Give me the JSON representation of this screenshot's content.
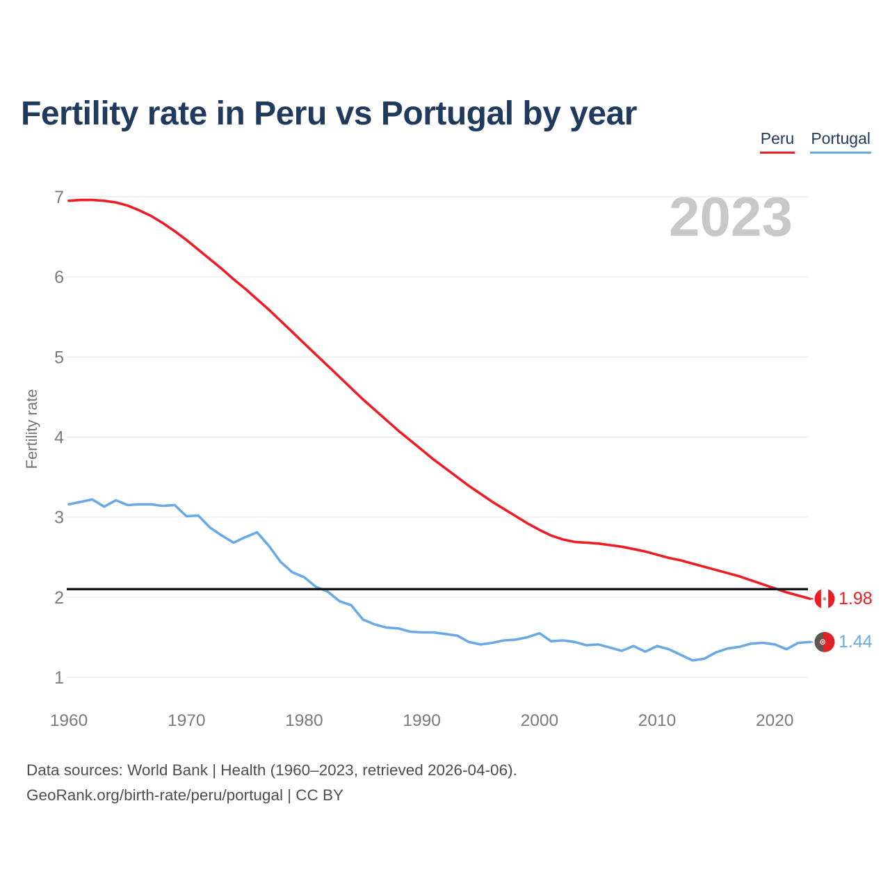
{
  "title": "Fertility rate in Peru vs Portugal by year",
  "watermark_year": "2023",
  "legend": {
    "items": [
      {
        "label": "Peru",
        "color": "#ee1c25"
      },
      {
        "label": "Portugal",
        "color": "#6aa9e4"
      }
    ]
  },
  "y_axis": {
    "title": "Fertility rate",
    "ticks": [
      7,
      6,
      5,
      4,
      3,
      2,
      1
    ]
  },
  "x_axis": {
    "ticks": [
      1960,
      1970,
      1980,
      1990,
      2000,
      2010,
      2020
    ]
  },
  "end_labels": {
    "peru": "1.98",
    "portugal": "1.44"
  },
  "footer": {
    "line1": "Data sources: World Bank | Health (1960–2023, retrieved 2026-04-06).",
    "line2": "GeoRank.org/birth-rate/peru/portugal | CC BY"
  },
  "chart_data": {
    "type": "line",
    "title": "Fertility rate in Peru vs Portugal by year",
    "xlabel": "",
    "ylabel": "Fertility rate",
    "x_start": 1960,
    "x_end": 2023,
    "ylim": [
      1,
      7
    ],
    "yticks": [
      1,
      2,
      3,
      4,
      5,
      6,
      7
    ],
    "xticks": [
      1960,
      1970,
      1980,
      1990,
      2000,
      2010,
      2020
    ],
    "grid": "horizontal",
    "legend_position": "top-right",
    "reference_line": {
      "value": 2.1,
      "color": "#13131b"
    },
    "series": [
      {
        "name": "Peru",
        "color": "#ee1c25",
        "end_value": 1.98,
        "values": [
          6.95,
          6.96,
          6.96,
          6.95,
          6.93,
          6.89,
          6.83,
          6.76,
          6.67,
          6.57,
          6.46,
          6.34,
          6.22,
          6.1,
          5.97,
          5.85,
          5.72,
          5.59,
          5.45,
          5.31,
          5.17,
          5.03,
          4.89,
          4.75,
          4.61,
          4.47,
          4.34,
          4.21,
          4.08,
          3.96,
          3.84,
          3.72,
          3.61,
          3.5,
          3.39,
          3.29,
          3.19,
          3.1,
          3.01,
          2.92,
          2.84,
          2.77,
          2.72,
          2.69,
          2.68,
          2.67,
          2.65,
          2.63,
          2.6,
          2.57,
          2.53,
          2.49,
          2.46,
          2.42,
          2.38,
          2.34,
          2.3,
          2.26,
          2.21,
          2.16,
          2.11,
          2.06,
          2.02,
          1.98
        ]
      },
      {
        "name": "Portugal",
        "color": "#6aa9e4",
        "end_value": 1.44,
        "values": [
          3.16,
          3.19,
          3.22,
          3.13,
          3.21,
          3.15,
          3.16,
          3.16,
          3.14,
          3.15,
          3.01,
          3.02,
          2.87,
          2.77,
          2.68,
          2.75,
          2.81,
          2.64,
          2.44,
          2.31,
          2.25,
          2.13,
          2.07,
          1.95,
          1.9,
          1.72,
          1.66,
          1.62,
          1.61,
          1.57,
          1.56,
          1.56,
          1.54,
          1.52,
          1.44,
          1.41,
          1.43,
          1.46,
          1.47,
          1.5,
          1.55,
          1.45,
          1.46,
          1.44,
          1.4,
          1.41,
          1.37,
          1.33,
          1.39,
          1.32,
          1.39,
          1.35,
          1.28,
          1.21,
          1.23,
          1.31,
          1.36,
          1.38,
          1.42,
          1.43,
          1.41,
          1.35,
          1.43,
          1.44
        ]
      }
    ]
  }
}
